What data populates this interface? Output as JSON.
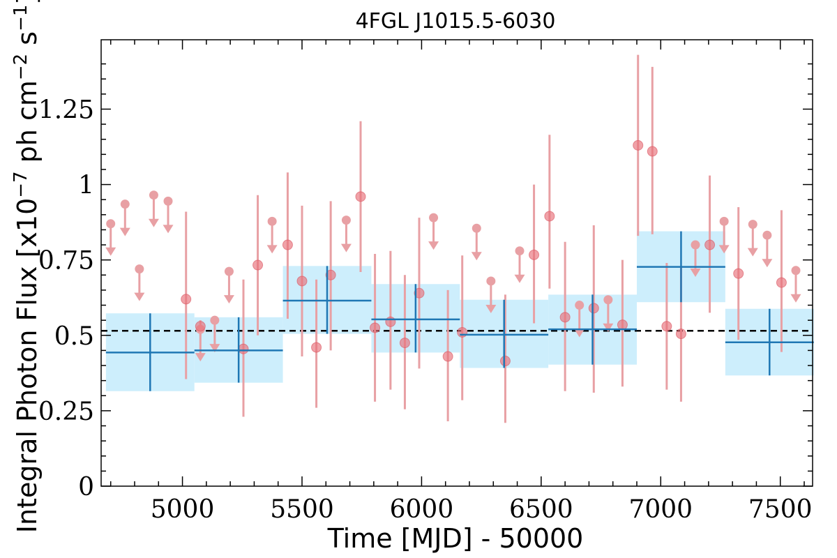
{
  "chart_data": {
    "type": "scatter",
    "title": "4FGL J1015.5-6030",
    "xlabel": "Time [MJD] - 50000",
    "ylabel": "Integral Photon Flux [x10",
    "ylabel_exp1": "−7",
    "ylabel_mid": " ph cm",
    "ylabel_exp2": "−2",
    "ylabel_mid2": " s",
    "ylabel_exp3": "−1",
    "ylabel_end": "]",
    "xlim": [
      4660,
      7635
    ],
    "ylim": [
      0,
      1.48
    ],
    "xticks": [
      5000,
      5500,
      6000,
      6500,
      7000,
      7500
    ],
    "xtick_labels": [
      "5000",
      "5500",
      "6000",
      "6500",
      "7000",
      "7500"
    ],
    "yticks": [
      0,
      0.25,
      0.5,
      0.75,
      1,
      1.25
    ],
    "ytick_labels": [
      "0",
      "0.25",
      "0.5",
      "0.75",
      "1",
      "1.25"
    ],
    "colors": {
      "points": "#e8707a",
      "errorbars": "#e8a0a4",
      "band": "#cdeefc",
      "bins": "#1f77b4",
      "mean": "#000000"
    },
    "mean_flux": 0.515,
    "detections": [
      {
        "x": 5015,
        "y": 0.62,
        "lo": 0.355,
        "hi": 0.91
      },
      {
        "x": 5075,
        "y": 0.53,
        "lo": 0.5,
        "hi": 0.55
      },
      {
        "x": 5255,
        "y": 0.455,
        "lo": 0.23,
        "hi": 0.685
      },
      {
        "x": 5315,
        "y": 0.733,
        "lo": 0.5,
        "hi": 0.965
      },
      {
        "x": 5440,
        "y": 0.8,
        "lo": 0.555,
        "hi": 1.04
      },
      {
        "x": 5500,
        "y": 0.68,
        "lo": 0.43,
        "hi": 0.93
      },
      {
        "x": 5560,
        "y": 0.46,
        "lo": 0.26,
        "hi": 0.685
      },
      {
        "x": 5620,
        "y": 0.7,
        "lo": 0.45,
        "hi": 0.945
      },
      {
        "x": 5745,
        "y": 0.96,
        "lo": 0.71,
        "hi": 1.21
      },
      {
        "x": 5805,
        "y": 0.525,
        "lo": 0.28,
        "hi": 0.77
      },
      {
        "x": 5870,
        "y": 0.545,
        "lo": 0.32,
        "hi": 0.78
      },
      {
        "x": 5930,
        "y": 0.475,
        "lo": 0.255,
        "hi": 0.7
      },
      {
        "x": 5990,
        "y": 0.64,
        "lo": 0.39,
        "hi": 0.89
      },
      {
        "x": 6110,
        "y": 0.43,
        "lo": 0.215,
        "hi": 0.65
      },
      {
        "x": 6170,
        "y": 0.51,
        "lo": 0.285,
        "hi": 0.765
      },
      {
        "x": 6350,
        "y": 0.415,
        "lo": 0.21,
        "hi": 0.635
      },
      {
        "x": 6470,
        "y": 0.767,
        "lo": 0.54,
        "hi": 1.0
      },
      {
        "x": 6535,
        "y": 0.895,
        "lo": 0.655,
        "hi": 1.165
      },
      {
        "x": 6600,
        "y": 0.56,
        "lo": 0.315,
        "hi": 0.81
      },
      {
        "x": 6720,
        "y": 0.59,
        "lo": 0.31,
        "hi": 0.865
      },
      {
        "x": 6840,
        "y": 0.535,
        "lo": 0.33,
        "hi": 0.75
      },
      {
        "x": 6905,
        "y": 1.13,
        "lo": 0.83,
        "hi": 1.43
      },
      {
        "x": 6965,
        "y": 1.11,
        "lo": 0.835,
        "hi": 1.39
      },
      {
        "x": 7025,
        "y": 0.53,
        "lo": 0.32,
        "hi": 0.74
      },
      {
        "x": 7085,
        "y": 0.505,
        "lo": 0.28,
        "hi": 0.73
      },
      {
        "x": 7205,
        "y": 0.8,
        "lo": 0.575,
        "hi": 1.03
      },
      {
        "x": 7325,
        "y": 0.705,
        "lo": 0.485,
        "hi": 0.925
      },
      {
        "x": 7505,
        "y": 0.675,
        "lo": 0.445,
        "hi": 0.915
      }
    ],
    "upper_limits": [
      {
        "x": 4700,
        "y": 0.87
      },
      {
        "x": 4760,
        "y": 0.935
      },
      {
        "x": 4820,
        "y": 0.72
      },
      {
        "x": 4880,
        "y": 0.965
      },
      {
        "x": 4940,
        "y": 0.945
      },
      {
        "x": 5075,
        "y": 0.52
      },
      {
        "x": 5135,
        "y": 0.55
      },
      {
        "x": 5195,
        "y": 0.712
      },
      {
        "x": 5375,
        "y": 0.878
      },
      {
        "x": 5685,
        "y": 0.882
      },
      {
        "x": 6050,
        "y": 0.89
      },
      {
        "x": 6230,
        "y": 0.855
      },
      {
        "x": 6290,
        "y": 0.68
      },
      {
        "x": 6410,
        "y": 0.78
      },
      {
        "x": 6660,
        "y": 0.6
      },
      {
        "x": 6780,
        "y": 0.618
      },
      {
        "x": 7145,
        "y": 0.8
      },
      {
        "x": 7265,
        "y": 0.878
      },
      {
        "x": 7385,
        "y": 0.868
      },
      {
        "x": 7445,
        "y": 0.832
      },
      {
        "x": 7565,
        "y": 0.715
      }
    ],
    "bins": [
      {
        "x0": 4680,
        "x1": 5050,
        "y": 0.443,
        "lo": 0.315,
        "hi": 0.573
      },
      {
        "x0": 5050,
        "x1": 5420,
        "y": 0.45,
        "lo": 0.343,
        "hi": 0.56
      },
      {
        "x0": 5420,
        "x1": 5790,
        "y": 0.615,
        "lo": 0.505,
        "hi": 0.73
      },
      {
        "x0": 5790,
        "x1": 6160,
        "y": 0.553,
        "lo": 0.443,
        "hi": 0.67
      },
      {
        "x0": 6160,
        "x1": 6530,
        "y": 0.502,
        "lo": 0.392,
        "hi": 0.618
      },
      {
        "x0": 6530,
        "x1": 6900,
        "y": 0.52,
        "lo": 0.403,
        "hi": 0.635
      },
      {
        "x0": 6900,
        "x1": 7270,
        "y": 0.727,
        "lo": 0.61,
        "hi": 0.845
      },
      {
        "x0": 7270,
        "x1": 7640,
        "y": 0.477,
        "lo": 0.367,
        "hi": 0.588
      }
    ]
  }
}
